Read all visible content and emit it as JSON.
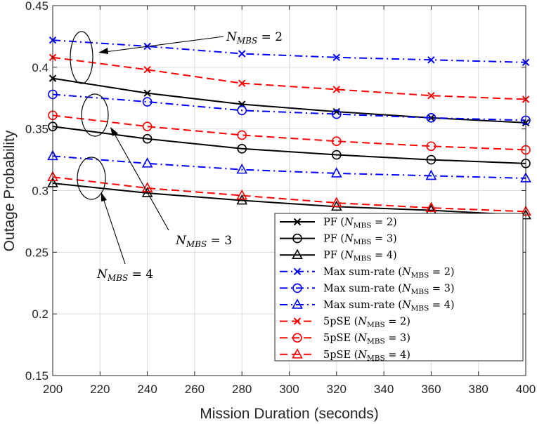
{
  "chart_data": {
    "type": "line",
    "xlabel": "Mission Duration (seconds)",
    "ylabel": "Outage Probability",
    "xlim": [
      200,
      400
    ],
    "ylim": [
      0.15,
      0.45
    ],
    "xticks": [
      200,
      220,
      240,
      260,
      280,
      300,
      320,
      340,
      360,
      380,
      400
    ],
    "yticks": [
      0.15,
      0.2,
      0.25,
      0.3,
      0.35,
      0.4,
      0.45
    ],
    "grid": true,
    "legend_position": "bottom-right",
    "x": [
      200,
      240,
      280,
      320,
      360,
      400
    ],
    "series": [
      {
        "name": "PF (N_MBS = 2)",
        "legend_prefix": "PF",
        "legend_n": "2",
        "color": "#000000",
        "dash": "solid",
        "marker": "x",
        "values": [
          0.391,
          0.379,
          0.37,
          0.364,
          0.359,
          0.355
        ]
      },
      {
        "name": "PF (N_MBS = 3)",
        "legend_prefix": "PF",
        "legend_n": "3",
        "color": "#000000",
        "dash": "solid",
        "marker": "o",
        "values": [
          0.352,
          0.342,
          0.334,
          0.329,
          0.325,
          0.322
        ]
      },
      {
        "name": "PF (N_MBS = 4)",
        "legend_prefix": "PF",
        "legend_n": "4",
        "color": "#000000",
        "dash": "solid",
        "marker": "^",
        "values": [
          0.306,
          0.298,
          0.292,
          0.287,
          0.284,
          0.28
        ]
      },
      {
        "name": "Max sum-rate (N_MBS = 2)",
        "legend_prefix": "Max sum-rate",
        "legend_n": "2",
        "color": "#0000ff",
        "dash": "dashdot",
        "marker": "x",
        "values": [
          0.422,
          0.417,
          0.411,
          0.408,
          0.406,
          0.404
        ]
      },
      {
        "name": "Max sum-rate (N_MBS = 3)",
        "legend_prefix": "Max sum-rate",
        "legend_n": "3",
        "color": "#0000ff",
        "dash": "dashdot",
        "marker": "o",
        "values": [
          0.378,
          0.372,
          0.365,
          0.362,
          0.359,
          0.357
        ]
      },
      {
        "name": "Max sum-rate (N_MBS = 4)",
        "legend_prefix": "Max sum-rate",
        "legend_n": "4",
        "color": "#0000ff",
        "dash": "dashdot",
        "marker": "^",
        "values": [
          0.328,
          0.322,
          0.317,
          0.314,
          0.312,
          0.31
        ]
      },
      {
        "name": "5pSE (N_MBS = 2)",
        "legend_prefix": "5pSE",
        "legend_n": "2",
        "color": "#ff0000",
        "dash": "dash",
        "marker": "x",
        "values": [
          0.408,
          0.398,
          0.387,
          0.382,
          0.377,
          0.374
        ]
      },
      {
        "name": "5pSE (N_MBS = 3)",
        "legend_prefix": "5pSE",
        "legend_n": "3",
        "color": "#ff0000",
        "dash": "dash",
        "marker": "o",
        "values": [
          0.361,
          0.352,
          0.345,
          0.34,
          0.336,
          0.333
        ]
      },
      {
        "name": "5pSE (N_MBS = 4)",
        "legend_prefix": "5pSE",
        "legend_n": "4",
        "color": "#ff0000",
        "dash": "dash",
        "marker": "^",
        "values": [
          0.311,
          0.302,
          0.296,
          0.29,
          0.286,
          0.283
        ]
      }
    ],
    "annotations": [
      {
        "base": "N",
        "sub": "MBS",
        "rest": " = 2"
      },
      {
        "base": "N",
        "sub": "MBS",
        "rest": " = 3"
      },
      {
        "base": "N",
        "sub": "MBS",
        "rest": " = 4"
      }
    ]
  }
}
